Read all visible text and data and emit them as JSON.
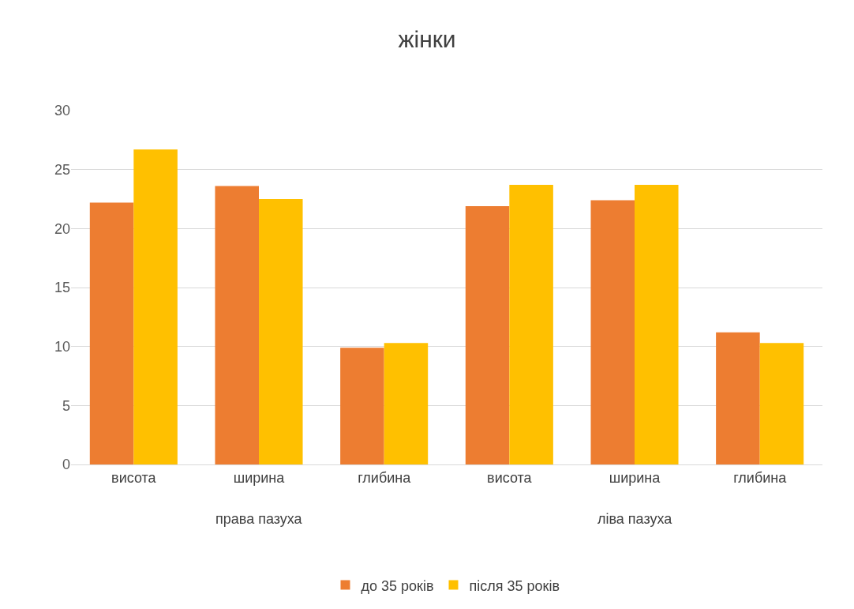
{
  "chart_data": {
    "type": "bar",
    "title": "жінки",
    "categories": [
      "висота",
      "ширина",
      "глибина",
      "висота",
      "ширина",
      "глибина"
    ],
    "series": [
      {
        "name": "до 35 років",
        "color": "#ed7d31",
        "values": [
          22.2,
          23.6,
          9.9,
          21.9,
          22.4,
          11.2
        ]
      },
      {
        "name": "після 35 років",
        "color": "#ffc000",
        "values": [
          26.7,
          22.5,
          10.3,
          23.7,
          23.7,
          10.3
        ]
      }
    ],
    "annotations": [
      "права пазуха",
      "ліва пазуха"
    ],
    "ylim": [
      0,
      30
    ],
    "yticks": [
      0,
      5,
      10,
      15,
      20,
      25,
      30
    ],
    "grid": "y",
    "legend": "bottom"
  }
}
